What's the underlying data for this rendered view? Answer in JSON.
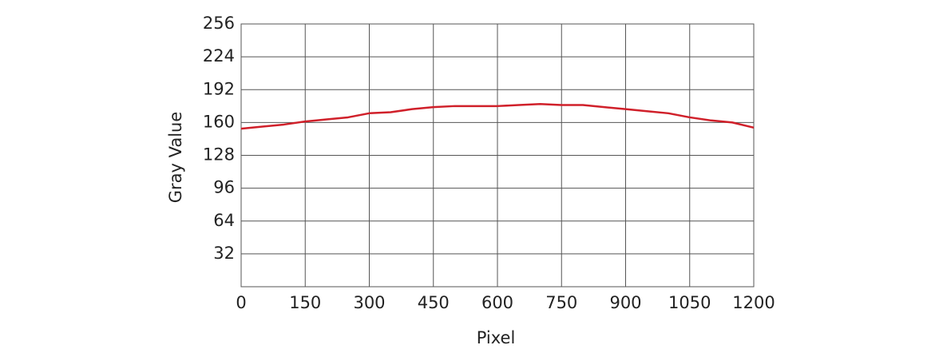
{
  "chart_data": {
    "type": "line",
    "x_label": "Pixel",
    "y_label": "Gray Value",
    "x": [
      0,
      50,
      100,
      150,
      200,
      250,
      300,
      350,
      400,
      450,
      500,
      550,
      600,
      650,
      700,
      750,
      800,
      850,
      900,
      950,
      1000,
      1050,
      1100,
      1150,
      1200
    ],
    "series": [
      {
        "color": "#d0202a",
        "values": [
          154,
          156,
          158,
          161,
          163,
          165,
          169,
          170,
          173,
          175,
          176,
          176,
          176,
          177,
          178,
          177,
          177,
          175,
          173,
          171,
          169,
          165,
          162,
          160,
          155
        ]
      }
    ],
    "xlim": [
      0,
      1200
    ],
    "xticks": [
      0,
      150,
      300,
      450,
      600,
      750,
      900,
      1050,
      1200
    ],
    "ylim": [
      0,
      256
    ],
    "yticks": [
      32,
      64,
      96,
      128,
      160,
      192,
      224,
      256
    ],
    "grid": true
  }
}
